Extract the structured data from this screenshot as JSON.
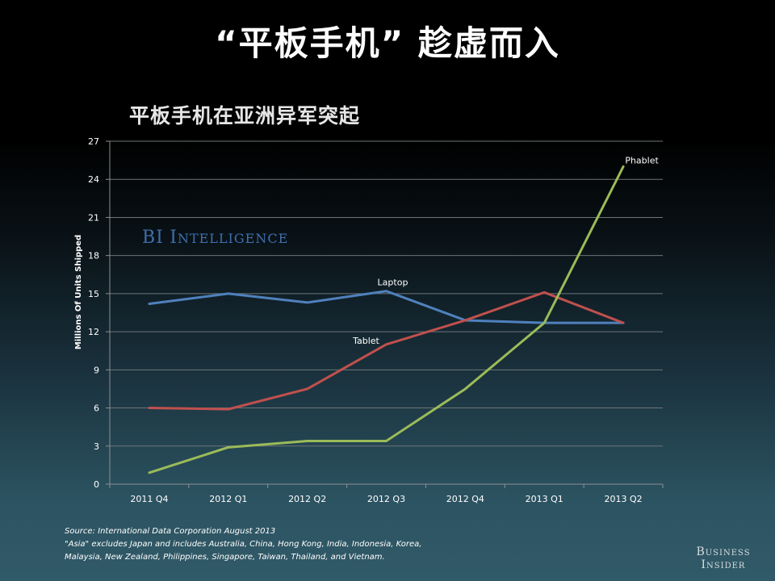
{
  "slide": {
    "title": "“平板手机” 趁虚而入"
  },
  "chart_data": {
    "type": "line",
    "title": "平板手机在亚洲异军突起",
    "xlabel": "",
    "ylabel": "Millions Of Units Shipped",
    "categories": [
      "2011 Q4",
      "2012 Q1",
      "2012 Q2",
      "2012 Q3",
      "2012 Q4",
      "2013 Q1",
      "2013 Q2"
    ],
    "ylim": [
      0,
      27
    ],
    "yticks": [
      0,
      3,
      6,
      9,
      12,
      15,
      18,
      21,
      24,
      27
    ],
    "grid": true,
    "series": [
      {
        "name": "Laptop",
        "color": "#4f81bd",
        "values": [
          14.2,
          15.0,
          14.3,
          15.2,
          12.9,
          12.7,
          12.7
        ]
      },
      {
        "name": "Tablet",
        "color": "#c0504d",
        "values": [
          6.0,
          5.9,
          7.5,
          11.0,
          12.9,
          15.1,
          12.7
        ]
      },
      {
        "name": "Phablet",
        "color": "#9bbb59",
        "values": [
          0.9,
          2.9,
          3.4,
          3.4,
          7.5,
          12.7,
          25.0
        ]
      }
    ],
    "watermark": "BI Intelligence"
  },
  "footnote": {
    "line1": "Source: International Data Corporation August 2013",
    "line2": "\"Asia\" excludes Japan and includes Australia, China, Hong Kong, India, Indonesia, Korea,",
    "line3": "Malaysia, New Zealand, Philippines, Singapore, Taiwan, Thailand, and Vietnam."
  },
  "brand": {
    "line1": "Business",
    "line2": "Insider"
  }
}
